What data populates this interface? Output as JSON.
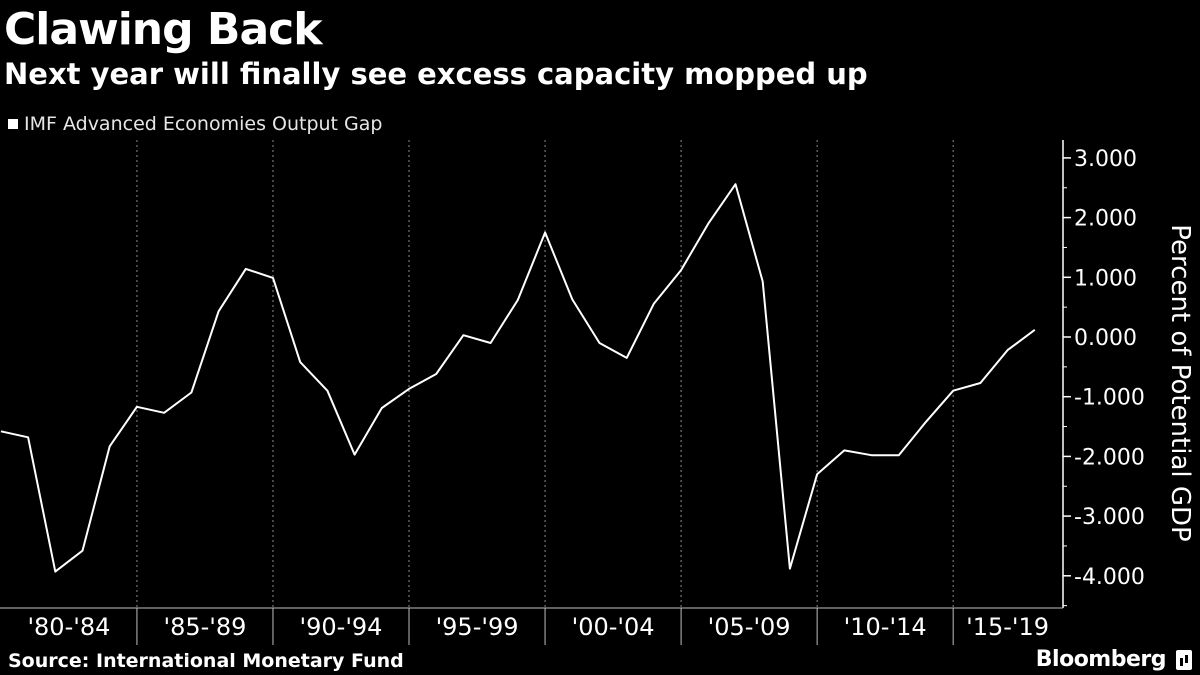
{
  "header": {
    "title": "Clawing Back",
    "subtitle": "Next year will finally see excess capacity mopped up"
  },
  "legend": {
    "label": "IMF Advanced Economies Output Gap"
  },
  "footer": {
    "source": "Source: International Monetary Fund",
    "brand": "Bloomberg"
  },
  "colors": {
    "background": "#000000",
    "line": "#ffffff",
    "grid": "#8c8c8c"
  },
  "chart_data": {
    "type": "line",
    "ylabel": "Percent of Potential GDP",
    "ylim": [
      -4.6,
      3.2
    ],
    "y_ticks": [
      3.0,
      2.0,
      1.0,
      0.0,
      -1.0,
      -2.0,
      -3.0,
      -4.0
    ],
    "y_tick_labels": [
      "3.000",
      "2.000",
      "1.000",
      "0.000",
      "-1.000",
      "-2.000",
      "-3.000",
      "-4.000"
    ],
    "y_axis_side": "right",
    "categories": [
      "'80-'84",
      "'85-'89",
      "'90-'94",
      "'95-'99",
      "'00-'04",
      "'05-'09",
      "'10-'14",
      "'15-'19"
    ],
    "grid": "vertical dotted",
    "series": [
      {
        "name": "IMF Advanced Economies Output Gap",
        "x": [
          1980,
          1981,
          1982,
          1983,
          1984,
          1985,
          1986,
          1987,
          1988,
          1989,
          1990,
          1991,
          1992,
          1993,
          1994,
          1995,
          1996,
          1997,
          1998,
          1999,
          2000,
          2001,
          2002,
          2003,
          2004,
          2005,
          2006,
          2007,
          2008,
          2009,
          2010,
          2011,
          2012,
          2013,
          2014,
          2015,
          2016,
          2017,
          2018
        ],
        "values": [
          -1.58,
          -1.68,
          -3.93,
          -3.58,
          -1.83,
          -1.17,
          -1.27,
          -0.93,
          0.43,
          1.14,
          0.99,
          -0.42,
          -0.9,
          -1.97,
          -1.19,
          -0.87,
          -0.62,
          0.03,
          -0.1,
          0.62,
          1.75,
          0.63,
          -0.1,
          -0.35,
          0.56,
          1.12,
          1.9,
          2.56,
          0.93,
          -3.88,
          -2.3,
          -1.9,
          -1.98,
          -1.98,
          -1.42,
          -0.9,
          -0.77,
          -0.22,
          0.12
        ]
      }
    ]
  }
}
